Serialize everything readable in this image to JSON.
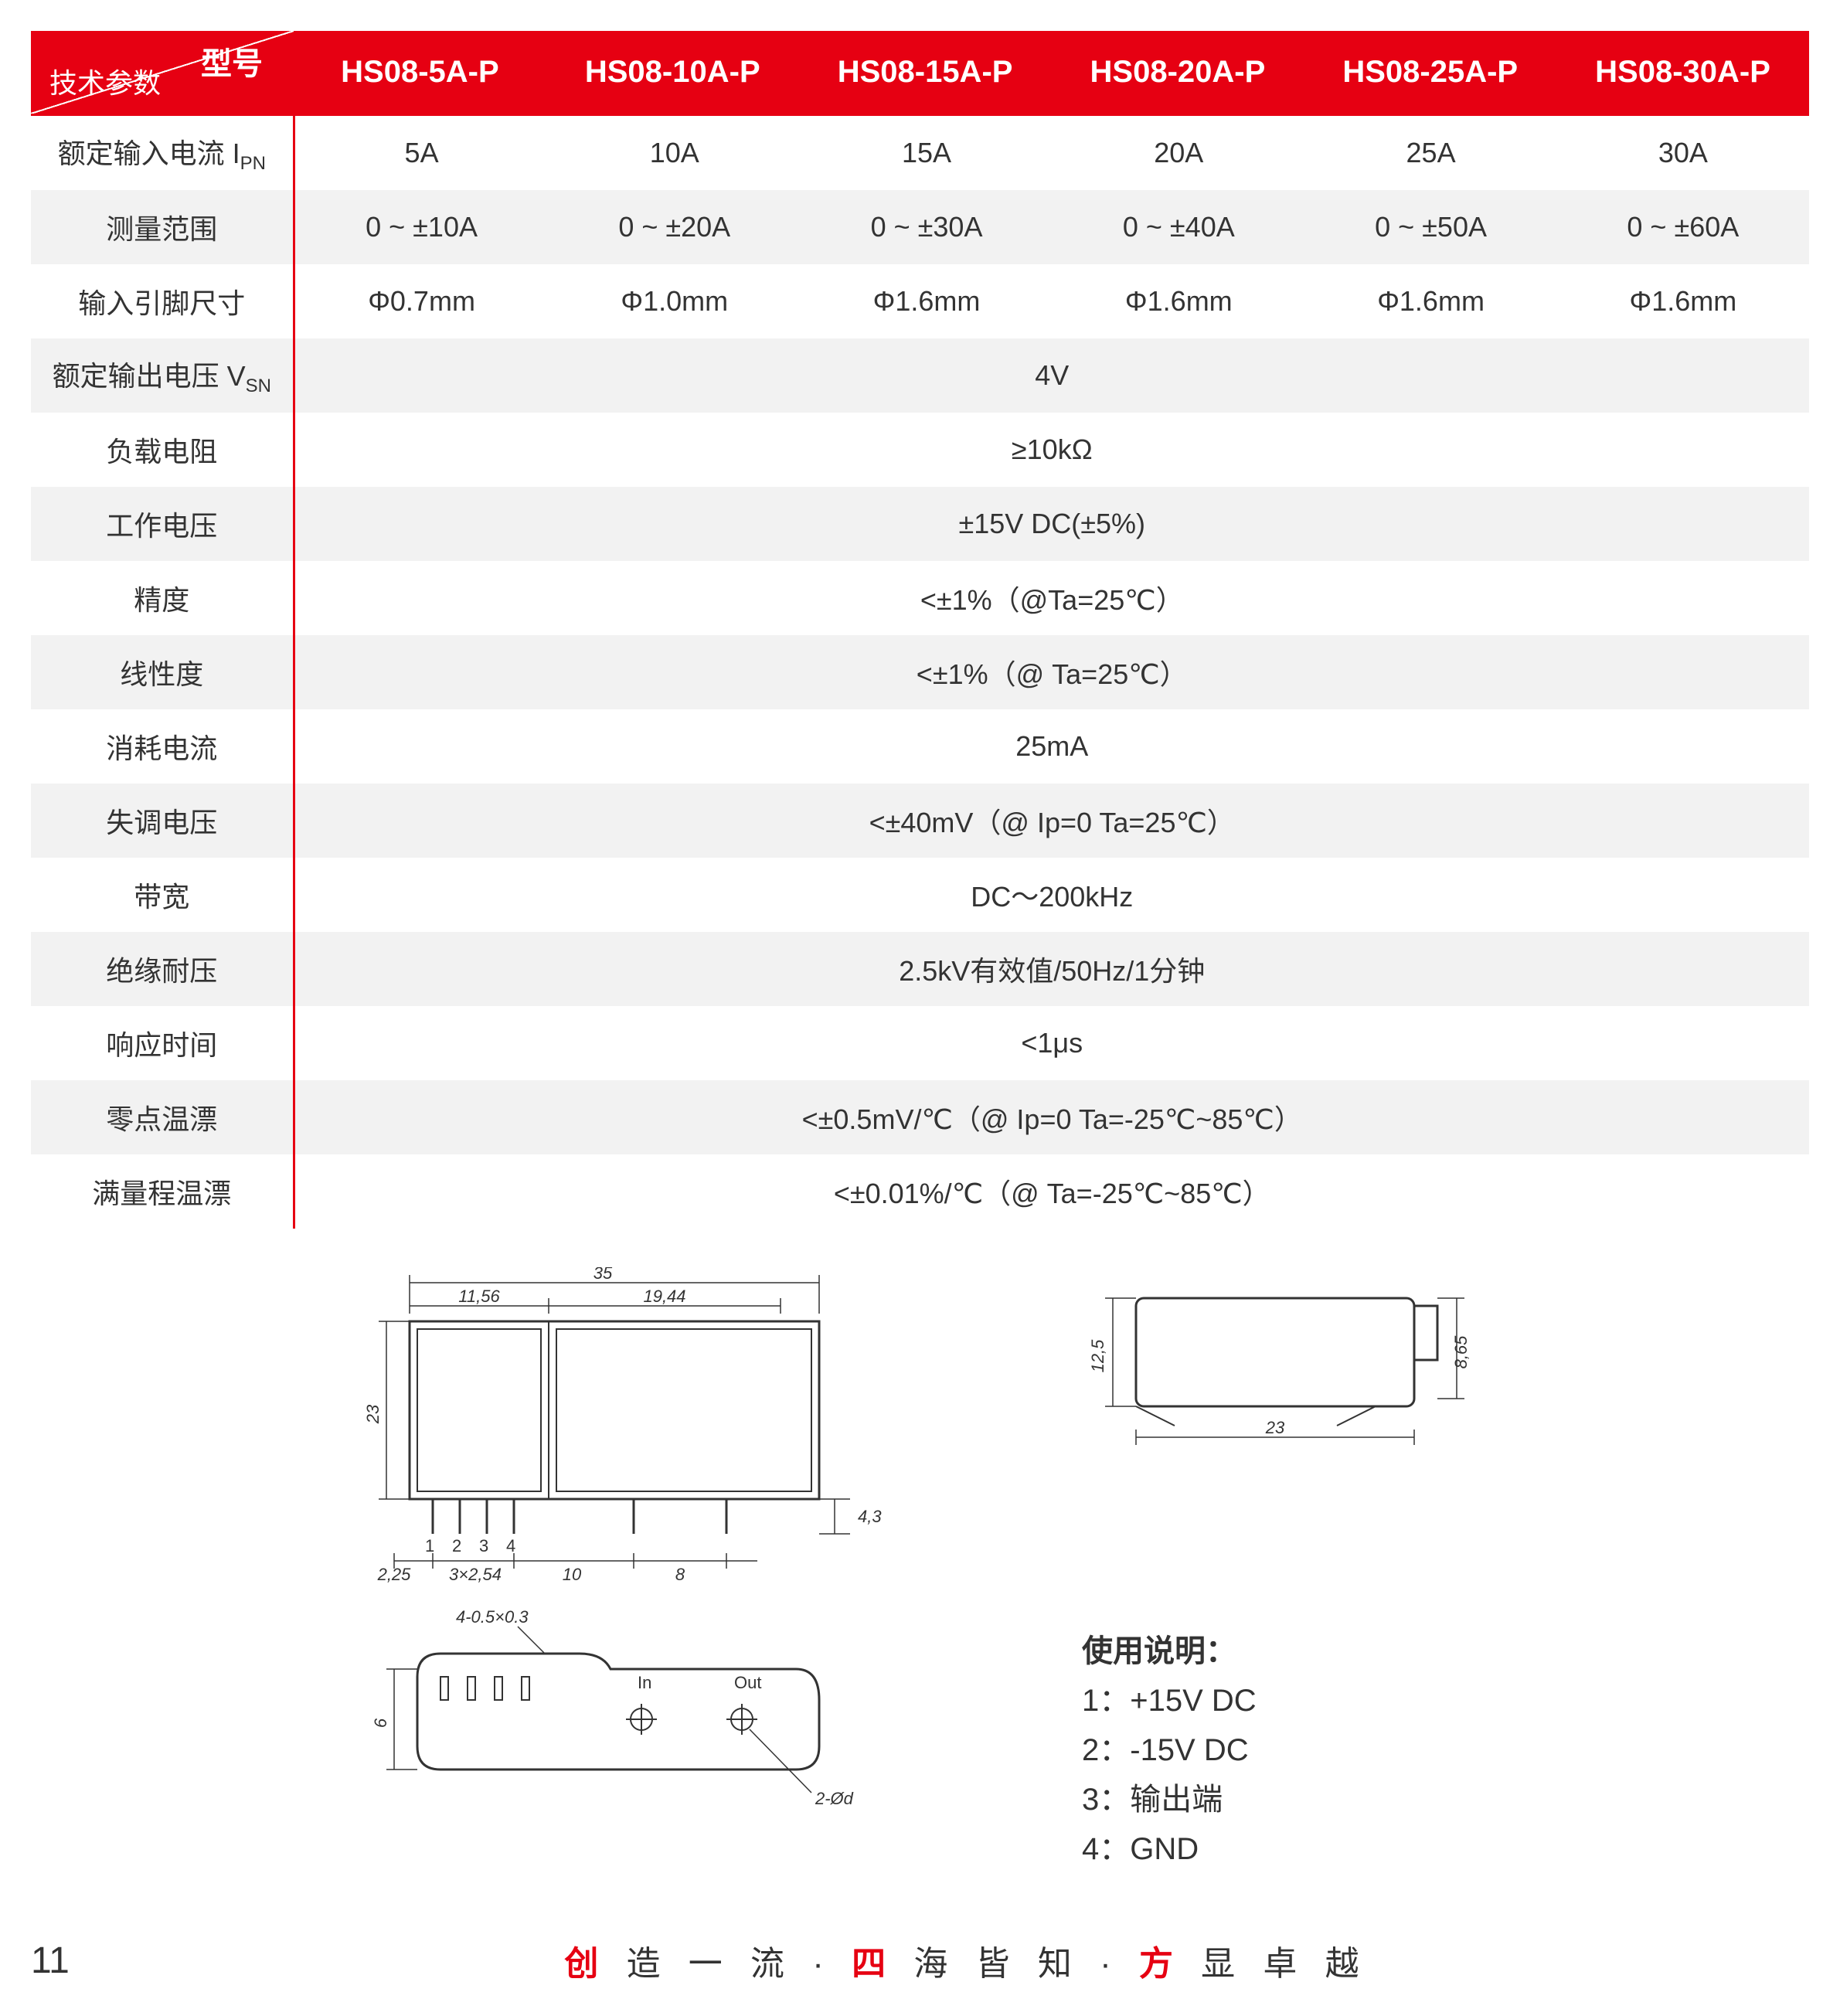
{
  "colors": {
    "brand": "#e60012",
    "row_alt": "#f2f2f2",
    "text": "#333333",
    "bg": "#ffffff"
  },
  "header": {
    "param_label": "技术参数",
    "model_label": "型号",
    "models": [
      "HS08-5A-P",
      "HS08-10A-P",
      "HS08-15A-P",
      "HS08-20A-P",
      "HS08-25A-P",
      "HS08-30A-P"
    ]
  },
  "rows": [
    {
      "label": "额定输入电流 I",
      "sub": "PN",
      "cells": [
        "5A",
        "10A",
        "15A",
        "20A",
        "25A",
        "30A"
      ],
      "gray": false
    },
    {
      "label": "测量范围",
      "cells": [
        "0 ~ ±10A",
        "0 ~ ±20A",
        "0 ~ ±30A",
        "0 ~ ±40A",
        "0 ~ ±50A",
        "0 ~ ±60A"
      ],
      "gray": true
    },
    {
      "label": "输入引脚尺寸",
      "cells": [
        "Φ0.7mm",
        "Φ1.0mm",
        "Φ1.6mm",
        "Φ1.6mm",
        "Φ1.6mm",
        "Φ1.6mm"
      ],
      "gray": false
    },
    {
      "label": "额定输出电压 V",
      "sub": "SN",
      "span": "4V",
      "gray": true
    },
    {
      "label": "负载电阻",
      "span": "≥10kΩ",
      "gray": false
    },
    {
      "label": "工作电压",
      "span": "±15V DC(±5%)",
      "gray": true
    },
    {
      "label": "精度",
      "span": "<±1%（@Ta=25℃）",
      "gray": false
    },
    {
      "label": "线性度",
      "span": "<±1%（@ Ta=25℃）",
      "gray": true
    },
    {
      "label": "消耗电流",
      "span": "25mA",
      "gray": false
    },
    {
      "label": "失调电压",
      "span": "<±40mV（@ Ip=0 Ta=25℃）",
      "gray": true
    },
    {
      "label": "带宽",
      "span": "DC～200kHz",
      "gray": false
    },
    {
      "label": "绝缘耐压",
      "span": "2.5kV有效值/50Hz/1分钟",
      "gray": true
    },
    {
      "label": "响应时间",
      "span": "<1μs",
      "gray": false
    },
    {
      "label": "零点温漂",
      "span": "<±0.5mV/℃（@ Ip=0 Ta=-25℃~85℃）",
      "gray": true
    },
    {
      "label": "满量程温漂",
      "span": "<±0.01%/℃（@ Ta=-25℃~85℃）",
      "gray": false
    }
  ],
  "diagram": {
    "dims": {
      "width_total": "35",
      "w_left": "11,56",
      "w_right": "19,44",
      "height": "23",
      "pin_h": "4,3",
      "left_off": "2,25",
      "pitch": "3×2,54",
      "gap1": "10",
      "gap2": "8",
      "side_h": "12,5",
      "side_w": "23",
      "side_top": "8,65",
      "slot": "4-0.5×0.3",
      "base_h": "6",
      "hole": "2-Ød",
      "in": "In",
      "out": "Out"
    }
  },
  "instructions": {
    "title": "使用说明：",
    "lines": [
      "1：+15V DC",
      "2：-15V DC",
      "3：输出端",
      "4：GND"
    ]
  },
  "footer": {
    "page": "11",
    "slogan": [
      {
        "t": "创",
        "r": true
      },
      {
        "t": " 造 一 流",
        "r": false
      },
      {
        "t": "  ·  ",
        "r": false
      },
      {
        "t": "四",
        "r": true
      },
      {
        "t": " 海 皆 知",
        "r": false
      },
      {
        "t": "  ·  ",
        "r": false
      },
      {
        "t": "方",
        "r": true
      },
      {
        "t": " 显 卓 越",
        "r": false
      }
    ]
  }
}
